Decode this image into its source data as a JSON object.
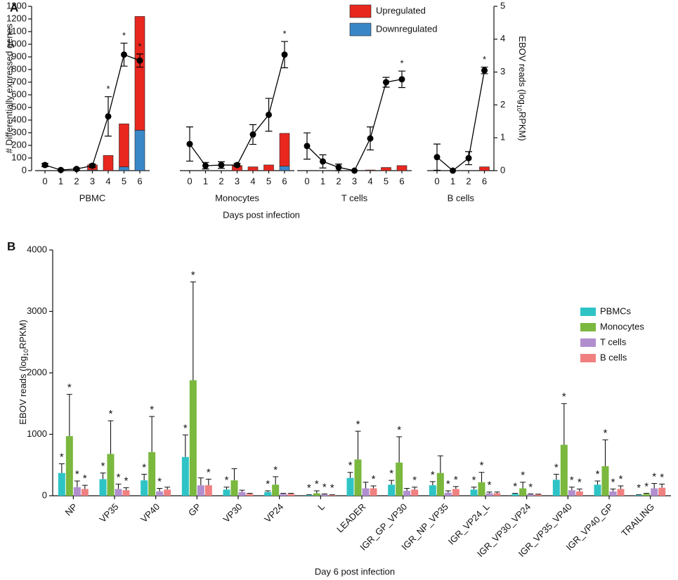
{
  "panel_labels": [
    "A",
    "B"
  ],
  "chart_data": [
    {
      "type": "stacked-bar-line",
      "ylabel": "# Differentially expressed genes",
      "y2label": [
        "EBOV reads (log",
        "10",
        "RPKM)"
      ],
      "xlabel": "Days post infection",
      "groups": [
        "PBMC",
        "Monocytes",
        "T cells",
        "B cells"
      ],
      "categories": [
        [
          "0",
          "1",
          "2",
          "3",
          "4",
          "5",
          "6"
        ],
        [
          "0",
          "1",
          "2",
          "3",
          "4",
          "5",
          "6"
        ],
        [
          "0",
          "1",
          "2",
          "3",
          "4",
          "5",
          "6"
        ],
        [
          "0",
          "1",
          "2",
          "6"
        ]
      ],
      "ylim": [
        0,
        1300
      ],
      "yticks": [
        0,
        100,
        200,
        300,
        400,
        500,
        600,
        700,
        800,
        900,
        1000,
        1100,
        1200,
        1300
      ],
      "y2lim": [
        0,
        5
      ],
      "y2ticks": [
        0,
        1,
        2,
        3,
        4,
        5
      ],
      "series": [
        {
          "name": "Upregulated",
          "color": "#e8271f",
          "values": [
            [
              0,
              0,
              0,
              40,
              120,
              340,
              900
            ],
            [
              0,
              0,
              0,
              40,
              30,
              45,
              260
            ],
            [
              0,
              0,
              0,
              0,
              5,
              25,
              40
            ],
            [
              0,
              0,
              0,
              30
            ]
          ]
        },
        {
          "name": "Downregulated",
          "color": "#3a87c8",
          "values": [
            [
              0,
              0,
              0,
              5,
              0,
              30,
              320
            ],
            [
              0,
              0,
              0,
              0,
              0,
              0,
              35
            ],
            [
              0,
              0,
              0,
              0,
              0,
              0,
              0
            ],
            [
              0,
              0,
              0,
              0
            ]
          ]
        },
        {
          "axis": "y2",
          "color": "#000000",
          "values": [
            [
              0.17,
              0.02,
              0.05,
              0.15,
              1.65,
              3.53,
              3.35
            ],
            [
              0.81,
              0.15,
              0.17,
              0.17,
              1.1,
              1.7,
              3.53
            ],
            [
              0.75,
              0.28,
              0.1,
              0,
              0.98,
              2.69,
              2.78
            ],
            [
              0.41,
              0,
              0.38,
              3.05
            ]
          ],
          "errors": [
            [
              0.05,
              0.02,
              0.03,
              0.05,
              0.6,
              0.35,
              0.2
            ],
            [
              0.52,
              0.1,
              0.1,
              0.05,
              0.3,
              0.5,
              0.4
            ],
            [
              0.4,
              0.2,
              0.1,
              0,
              0.35,
              0.15,
              0.25
            ],
            [
              0.4,
              0,
              0.2,
              0.1
            ]
          ],
          "labels": [
            [
              null,
              null,
              null,
              null,
              "*",
              "*",
              "*"
            ],
            [
              null,
              null,
              null,
              null,
              null,
              null,
              "*"
            ],
            [
              null,
              null,
              null,
              null,
              null,
              null,
              "*"
            ],
            [
              null,
              null,
              null,
              "*"
            ]
          ]
        }
      ]
    },
    {
      "type": "bar",
      "ylabel": [
        "EBOV reads (log",
        "10",
        "RPKM)"
      ],
      "xlabel": "Day 6 post infection",
      "categories": [
        "NP",
        "VP35",
        "VP40",
        "GP",
        "VP30",
        "VP24",
        "L",
        "LEADER",
        "IGR_GP_VP30",
        "IGR_NP_VP35",
        "IGR_VP24_L",
        "IGR_VP30_VP24",
        "IGR_VP35_VP40",
        "IGR_VP40_GP",
        "TRAILING"
      ],
      "ylim": [
        0,
        4000
      ],
      "yticks": [
        0,
        1000,
        2000,
        3000,
        4000
      ],
      "series": [
        {
          "name": "PBMCs",
          "color": "#2ec4c6",
          "values": [
            370,
            270,
            250,
            630,
            100,
            60,
            10,
            290,
            180,
            170,
            100,
            30,
            260,
            180,
            10
          ],
          "errors": [
            150,
            100,
            100,
            360,
            40,
            20,
            5,
            90,
            70,
            60,
            40,
            10,
            90,
            60,
            5
          ],
          "labels": [
            "*",
            "*",
            "*",
            "*",
            "*",
            "*",
            "*",
            "*",
            "*",
            "*",
            "*",
            "*",
            "*",
            "*",
            "*"
          ]
        },
        {
          "name": "Monocytes",
          "color": "#7ab83e",
          "values": [
            970,
            680,
            710,
            1880,
            250,
            180,
            40,
            590,
            540,
            370,
            220,
            120,
            830,
            480,
            30
          ],
          "errors": [
            680,
            540,
            580,
            1600,
            190,
            130,
            40,
            460,
            420,
            280,
            160,
            100,
            670,
            430,
            10
          ],
          "labels": [
            "*",
            "*",
            "*",
            "*",
            null,
            "*",
            "*",
            "*",
            "*",
            null,
            "*",
            "*",
            "*",
            "*",
            "*"
          ]
        },
        {
          "name": "T cells",
          "color": "#b18fcf",
          "values": [
            140,
            110,
            70,
            170,
            60,
            30,
            20,
            120,
            80,
            50,
            40,
            20,
            90,
            70,
            120
          ],
          "errors": [
            100,
            80,
            50,
            120,
            30,
            10,
            10,
            100,
            40,
            30,
            20,
            10,
            50,
            40,
            80
          ],
          "labels": [
            "*",
            "*",
            "*",
            null,
            null,
            null,
            "*",
            null,
            null,
            "*",
            "*",
            "*",
            "*",
            "*",
            "*"
          ]
        },
        {
          "name": "B cells",
          "color": "#f08080",
          "values": [
            110,
            90,
            100,
            170,
            30,
            30,
            10,
            120,
            100,
            110,
            40,
            20,
            70,
            110,
            130
          ],
          "errors": [
            60,
            40,
            40,
            100,
            10,
            10,
            5,
            40,
            40,
            40,
            20,
            5,
            40,
            50,
            60
          ],
          "labels": [
            "*",
            "*",
            null,
            "*",
            null,
            null,
            "*",
            "*",
            "*",
            "*",
            null,
            null,
            "*",
            "*",
            "*"
          ]
        }
      ]
    }
  ]
}
